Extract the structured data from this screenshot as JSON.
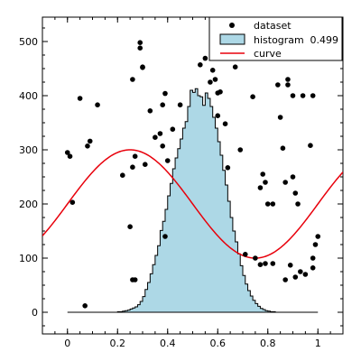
{
  "chart_data": {
    "type": "scatter",
    "title": "",
    "xlabel": "",
    "ylabel": "",
    "xlim": [
      -0.1,
      1.1
    ],
    "ylim": [
      -40,
      545
    ],
    "xticks": [
      0,
      0.2,
      0.4,
      0.6,
      0.8,
      1
    ],
    "xtick_labels": [
      "0",
      "0.2",
      "0.4",
      "0.6",
      "0.8",
      "1"
    ],
    "yticks": [
      0,
      100,
      200,
      300,
      400,
      500
    ],
    "ytick_labels": [
      "0",
      "100",
      "200",
      "300",
      "400",
      "500"
    ],
    "grid": false,
    "legend_placement": "top-right",
    "legend": [
      {
        "label": "dataset",
        "marker": "dot"
      },
      {
        "label": "histogram",
        "marker": "box",
        "value": "0.499"
      },
      {
        "label": "curve",
        "marker": "line"
      }
    ],
    "colors": {
      "dataset": "#000000",
      "histogram_fill": "#add8e6",
      "histogram_edge": "#000000",
      "curve": "#e8000b"
    },
    "dataset": {
      "name": "dataset",
      "x": [
        0.0,
        0.01,
        0.02,
        0.05,
        0.07,
        0.08,
        0.09,
        0.12,
        0.22,
        0.25,
        0.26,
        0.26,
        0.26,
        0.27,
        0.29,
        0.29,
        0.3,
        0.3,
        0.31,
        0.33,
        0.35,
        0.37,
        0.38,
        0.38,
        0.39,
        0.4,
        0.42,
        0.45,
        0.53,
        0.55,
        0.57,
        0.58,
        0.59,
        0.6,
        0.61,
        0.63,
        0.64,
        0.67,
        0.68,
        0.69,
        0.71,
        0.74,
        0.77,
        0.77,
        0.78,
        0.79,
        0.8,
        0.82,
        0.84,
        0.85,
        0.86,
        0.87,
        0.88,
        0.88,
        0.89,
        0.9,
        0.91,
        0.92,
        0.93,
        0.94,
        0.97,
        0.98,
        0.98,
        0.98,
        0.99,
        1.0
      ],
      "y": [
        295,
        288,
        203,
        395,
        12,
        307,
        316,
        383,
        253,
        158,
        60,
        430,
        268,
        288,
        488,
        498,
        452,
        453,
        273,
        372,
        323,
        330,
        307,
        383,
        404,
        280,
        338,
        383,
        457,
        469,
        425,
        447,
        430,
        363,
        407,
        348,
        267,
        453,
        480,
        300,
        107,
        398,
        88,
        230,
        255,
        240,
        200,
        200,
        420,
        360,
        303,
        60,
        420,
        430,
        87,
        400,
        220,
        200,
        75,
        400,
        308,
        400,
        100,
        82,
        125,
        140
      ],
      "extra_points": {
        "x": [
          0.27,
          0.39,
          0.6,
          0.75,
          0.79,
          0.82,
          0.87,
          0.9,
          0.91,
          0.95
        ],
        "y": [
          60,
          140,
          405,
          100,
          90,
          90,
          240,
          250,
          65,
          70
        ]
      }
    },
    "histogram": {
      "name": "histogram",
      "value": "0.499",
      "bin_edges_start": 0.0,
      "bin_width": 0.01,
      "counts": [
        0,
        0,
        0,
        0,
        0,
        0,
        0,
        0,
        0,
        0,
        0,
        0,
        0,
        0,
        0,
        0,
        0,
        0,
        0,
        0,
        1,
        1,
        2,
        3,
        4,
        6,
        8,
        10,
        14,
        20,
        29,
        42,
        55,
        71,
        88,
        105,
        123,
        151,
        168,
        190,
        215,
        238,
        265,
        285,
        302,
        320,
        340,
        352,
        365,
        370,
        375,
        385,
        400,
        408,
        410,
        405,
        395,
        380,
        360,
        340,
        315,
        290,
        262,
        235,
        205,
        175,
        150,
        130,
        108,
        86,
        68,
        52,
        40,
        30,
        22,
        16,
        11,
        7,
        5,
        3,
        2,
        1,
        1,
        0,
        0,
        0,
        0,
        0,
        0,
        0,
        0,
        0,
        0,
        0,
        0,
        0,
        0,
        0,
        0,
        0
      ],
      "counts_note_peak": [
        0.5,
        413
      ],
      "peak_overrides": {
        "x": [
          0.48,
          0.49,
          0.5,
          0.51,
          0.52,
          0.53,
          0.54
        ],
        "y": [
          380,
          410,
          406,
          413,
          400,
          398,
          382
        ]
      }
    },
    "curve": {
      "name": "curve",
      "formula": "200 + 100*sin(2*pi*x)",
      "x_range": [
        -0.1,
        1.1
      ]
    }
  }
}
